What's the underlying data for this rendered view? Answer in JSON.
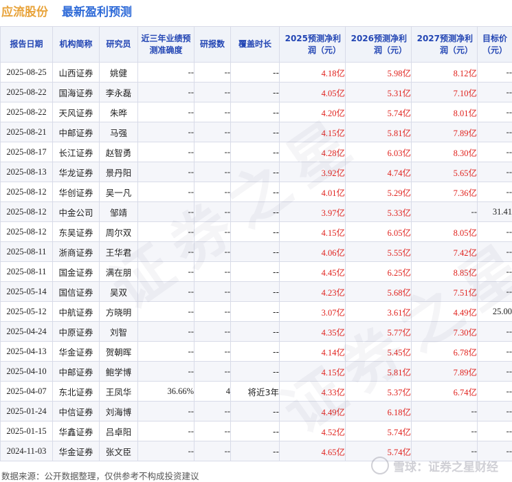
{
  "header": {
    "company": "应流股份",
    "subtitle": "最新盈利预测"
  },
  "table": {
    "columns": [
      "报告日期",
      "机构简称",
      "研究员",
      "近三年业绩预测准确度",
      "研报数",
      "覆盖时长",
      "2025预测净利润（元）",
      "2026预测净利润（元）",
      "2027预测净利润（元）",
      "目标价（元）"
    ],
    "rows": [
      [
        "2025-08-25",
        "山西证券",
        "姚健",
        "--",
        "--",
        "--",
        "4.18亿",
        "5.98亿",
        "8.12亿",
        "--"
      ],
      [
        "2025-08-22",
        "国海证券",
        "李永磊",
        "--",
        "--",
        "--",
        "4.05亿",
        "5.31亿",
        "7.10亿",
        "--"
      ],
      [
        "2025-08-22",
        "天风证券",
        "朱晔",
        "--",
        "--",
        "--",
        "4.20亿",
        "5.74亿",
        "8.01亿",
        "--"
      ],
      [
        "2025-08-21",
        "中邮证券",
        "马强",
        "--",
        "--",
        "--",
        "4.15亿",
        "5.81亿",
        "7.89亿",
        "--"
      ],
      [
        "2025-08-17",
        "长江证券",
        "赵智勇",
        "--",
        "--",
        "--",
        "4.28亿",
        "6.03亿",
        "8.30亿",
        "--"
      ],
      [
        "2025-08-13",
        "华龙证券",
        "景丹阳",
        "--",
        "--",
        "--",
        "3.92亿",
        "4.74亿",
        "5.65亿",
        "--"
      ],
      [
        "2025-08-12",
        "华创证券",
        "吴一凡",
        "--",
        "--",
        "--",
        "4.01亿",
        "5.29亿",
        "7.36亿",
        "--"
      ],
      [
        "2025-08-12",
        "中金公司",
        "邹靖",
        "--",
        "--",
        "--",
        "3.97亿",
        "5.33亿",
        "--",
        "31.41"
      ],
      [
        "2025-08-12",
        "东吴证券",
        "周尔双",
        "--",
        "--",
        "--",
        "4.15亿",
        "6.05亿",
        "8.05亿",
        "--"
      ],
      [
        "2025-08-11",
        "浙商证券",
        "王华君",
        "--",
        "--",
        "--",
        "4.06亿",
        "5.55亿",
        "7.42亿",
        "--"
      ],
      [
        "2025-08-11",
        "国金证券",
        "满在朋",
        "--",
        "--",
        "--",
        "4.45亿",
        "6.25亿",
        "8.85亿",
        "--"
      ],
      [
        "2025-05-14",
        "国信证券",
        "吴双",
        "--",
        "--",
        "--",
        "4.23亿",
        "5.68亿",
        "7.51亿",
        "--"
      ],
      [
        "2025-05-12",
        "中航证券",
        "方晓明",
        "--",
        "--",
        "--",
        "3.07亿",
        "3.61亿",
        "4.49亿",
        "25.00"
      ],
      [
        "2025-04-24",
        "中原证券",
        "刘智",
        "--",
        "--",
        "--",
        "4.35亿",
        "5.77亿",
        "7.30亿",
        "--"
      ],
      [
        "2025-04-13",
        "华金证券",
        "贺朝晖",
        "--",
        "--",
        "--",
        "4.14亿",
        "5.45亿",
        "6.78亿",
        "--"
      ],
      [
        "2025-04-10",
        "中邮证券",
        "鲍学博",
        "--",
        "--",
        "--",
        "4.15亿",
        "5.81亿",
        "7.89亿",
        "--"
      ],
      [
        "2025-04-07",
        "东北证券",
        "王凤华",
        "36.66%",
        "4",
        "将近3年",
        "4.33亿",
        "5.37亿",
        "6.74亿",
        "--"
      ],
      [
        "2025-01-24",
        "中信证券",
        "刘海博",
        "--",
        "--",
        "--",
        "4.49亿",
        "6.18亿",
        "--",
        "--"
      ],
      [
        "2025-01-15",
        "华鑫证券",
        "吕卓阳",
        "--",
        "--",
        "--",
        "4.52亿",
        "5.74亿",
        "--",
        "--"
      ],
      [
        "2024-11-03",
        "华金证券",
        "张文臣",
        "--",
        "--",
        "--",
        "4.65亿",
        "5.74亿",
        "--",
        "--"
      ]
    ]
  },
  "footer": {
    "source": "数据来源：公开数据整理，仅供参考不构成投资建议"
  },
  "logo": {
    "text": "雪球：证券之星财经"
  },
  "watermark": {
    "text": "证券之星"
  },
  "colors": {
    "company": "#e8a33a",
    "subtitle": "#2f6bd8",
    "header_text": "#2346b4",
    "forecast_value": "#e0221d"
  }
}
